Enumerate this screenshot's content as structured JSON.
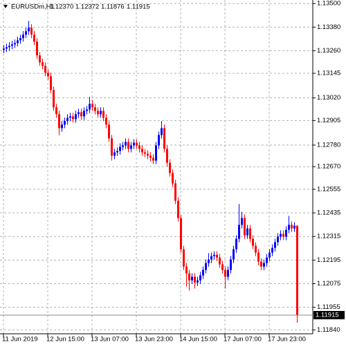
{
  "chart_data": {
    "type": "candlestick",
    "title": "EURUSDm,H1",
    "header_values": [
      "1.12370",
      "1.12372",
      "1.11876",
      "1.11915"
    ],
    "up_color": "#0000ff",
    "down_color": "#ff0000",
    "grid": true,
    "ylim": [
      1.1182,
      1.13518
    ],
    "yticks": [
      {
        "value": 1.135,
        "label": "1.13500"
      },
      {
        "value": 1.1338,
        "label": "1.13380"
      },
      {
        "value": 1.1326,
        "label": "1.13260"
      },
      {
        "value": 1.13145,
        "label": "1.13145"
      },
      {
        "value": 1.1302,
        "label": "1.13020"
      },
      {
        "value": 1.12905,
        "label": "1.12905"
      },
      {
        "value": 1.1278,
        "label": "1.12780"
      },
      {
        "value": 1.1267,
        "label": "1.12670"
      },
      {
        "value": 1.12555,
        "label": "1.12555"
      },
      {
        "value": 1.12435,
        "label": "1.12435"
      },
      {
        "value": 1.12315,
        "label": "1.12315"
      },
      {
        "value": 1.12195,
        "label": "1.12195"
      },
      {
        "value": 1.12075,
        "label": "1.12075"
      },
      {
        "value": 1.11955,
        "label": "1.11955"
      },
      {
        "value": 1.1184,
        "label": "1.11840"
      }
    ],
    "xticks": [
      {
        "value": 0,
        "label": "11 Jun 2019"
      },
      {
        "value": 16,
        "label": "12 Jun 15:00"
      },
      {
        "value": 32,
        "label": "13 Jun 07:00"
      },
      {
        "value": 48,
        "label": "13 Jun 23:00"
      },
      {
        "value": 64,
        "label": "14 Jun 15:00"
      },
      {
        "value": 80,
        "label": "17 Jun 07:00"
      },
      {
        "value": 96,
        "label": "17 Jun 23:00"
      }
    ],
    "price_line": {
      "value": 1.11915,
      "label": "1.11915"
    },
    "candles": [
      [
        1.13265,
        1.13289,
        1.13247,
        1.13271
      ],
      [
        1.13271,
        1.13296,
        1.13253,
        1.13278
      ],
      [
        1.13278,
        1.13303,
        1.1326,
        1.13285
      ],
      [
        1.13285,
        1.1331,
        1.13267,
        1.13292
      ],
      [
        1.13292,
        1.13317,
        1.13274,
        1.13299
      ],
      [
        1.13299,
        1.13331,
        1.13281,
        1.13313
      ],
      [
        1.13313,
        1.13342,
        1.13295,
        1.13324
      ],
      [
        1.13324,
        1.1336,
        1.13306,
        1.13342
      ],
      [
        1.13342,
        1.13377,
        1.13324,
        1.13359
      ],
      [
        1.13359,
        1.13412,
        1.13341,
        1.13377
      ],
      [
        1.13377,
        1.13395,
        1.13324,
        1.13342
      ],
      [
        1.13342,
        1.1336,
        1.13288,
        1.13306
      ],
      [
        1.13306,
        1.13324,
        1.13218,
        1.13236
      ],
      [
        1.13236,
        1.13254,
        1.13183,
        1.13201
      ],
      [
        1.13201,
        1.13219,
        1.13165,
        1.13183
      ],
      [
        1.13183,
        1.13201,
        1.1313,
        1.13148
      ],
      [
        1.13148,
        1.13166,
        1.13112,
        1.1313
      ],
      [
        1.1313,
        1.13148,
        1.13042,
        1.1306
      ],
      [
        1.1306,
        1.13078,
        1.12954,
        1.12972
      ],
      [
        1.12972,
        1.1299,
        1.12919,
        1.12937
      ],
      [
        1.12937,
        1.12955,
        1.1283,
        1.12866
      ],
      [
        1.12866,
        1.12902,
        1.12848,
        1.12884
      ],
      [
        1.12884,
        1.1292,
        1.12866,
        1.12902
      ],
      [
        1.12902,
        1.12937,
        1.12884,
        1.12919
      ],
      [
        1.12919,
        1.12944,
        1.12901,
        1.12926
      ],
      [
        1.12926,
        1.12944,
        1.12894,
        1.12912
      ],
      [
        1.12912,
        1.12955,
        1.12894,
        1.12937
      ],
      [
        1.12937,
        1.12965,
        1.12919,
        1.12947
      ],
      [
        1.12947,
        1.12965,
        1.12908,
        1.12926
      ],
      [
        1.12926,
        1.12972,
        1.12908,
        1.12954
      ],
      [
        1.12954,
        1.12979,
        1.12936,
        1.12961
      ],
      [
        1.12961,
        1.13025,
        1.12943,
        1.1299
      ],
      [
        1.1299,
        1.13008,
        1.12954,
        1.12972
      ],
      [
        1.12972,
        1.1299,
        1.12936,
        1.12954
      ],
      [
        1.12954,
        1.12972,
        1.12919,
        1.12937
      ],
      [
        1.12937,
        1.12972,
        1.12919,
        1.12954
      ],
      [
        1.12954,
        1.12972,
        1.12901,
        1.12919
      ],
      [
        1.12919,
        1.12937,
        1.12866,
        1.12884
      ],
      [
        1.12884,
        1.12902,
        1.12796,
        1.12814
      ],
      [
        1.12814,
        1.12832,
        1.12701,
        1.12726
      ],
      [
        1.12726,
        1.12761,
        1.12708,
        1.12743
      ],
      [
        1.12743,
        1.12768,
        1.12725,
        1.1275
      ],
      [
        1.1275,
        1.12789,
        1.12732,
        1.12771
      ],
      [
        1.12771,
        1.12796,
        1.12753,
        1.12778
      ],
      [
        1.12778,
        1.12814,
        1.1276,
        1.12796
      ],
      [
        1.12796,
        1.12814,
        1.12743,
        1.12761
      ],
      [
        1.12761,
        1.12796,
        1.12743,
        1.12778
      ],
      [
        1.12778,
        1.1281,
        1.1276,
        1.12792
      ],
      [
        1.12792,
        1.1281,
        1.1276,
        1.12778
      ],
      [
        1.12778,
        1.12796,
        1.12743,
        1.12761
      ],
      [
        1.12761,
        1.12779,
        1.12725,
        1.12743
      ],
      [
        1.12743,
        1.12761,
        1.12718,
        1.12736
      ],
      [
        1.12736,
        1.12754,
        1.12708,
        1.12726
      ],
      [
        1.12726,
        1.12744,
        1.12697,
        1.12715
      ],
      [
        1.12715,
        1.12733,
        1.12683,
        1.12701
      ],
      [
        1.12701,
        1.12796,
        1.12683,
        1.12778
      ],
      [
        1.12778,
        1.12849,
        1.1276,
        1.12831
      ],
      [
        1.12831,
        1.12902,
        1.12813,
        1.12866
      ],
      [
        1.12866,
        1.12884,
        1.12743,
        1.12761
      ],
      [
        1.12761,
        1.12779,
        1.12672,
        1.1269
      ],
      [
        1.1269,
        1.12708,
        1.1262,
        1.12638
      ],
      [
        1.12638,
        1.12656,
        1.12567,
        1.12585
      ],
      [
        1.12585,
        1.12603,
        1.12479,
        1.12497
      ],
      [
        1.12497,
        1.12515,
        1.12391,
        1.12409
      ],
      [
        1.12409,
        1.12427,
        1.12232,
        1.1225
      ],
      [
        1.1225,
        1.12268,
        1.12144,
        1.12162
      ],
      [
        1.12162,
        1.1218,
        1.1206,
        1.12127
      ],
      [
        1.12127,
        1.12145,
        1.1204,
        1.12092
      ],
      [
        1.12092,
        1.12128,
        1.12074,
        1.1211
      ],
      [
        1.1211,
        1.12128,
        1.1205,
        1.12081
      ],
      [
        1.12081,
        1.1211,
        1.12063,
        1.12092
      ],
      [
        1.12092,
        1.12135,
        1.12074,
        1.12117
      ],
      [
        1.12117,
        1.12163,
        1.12099,
        1.12145
      ],
      [
        1.12145,
        1.12198,
        1.12127,
        1.1218
      ],
      [
        1.1218,
        1.1223,
        1.12162,
        1.12198
      ],
      [
        1.12198,
        1.12233,
        1.1218,
        1.12215
      ],
      [
        1.12215,
        1.1224,
        1.12197,
        1.12222
      ],
      [
        1.12222,
        1.1224,
        1.1219,
        1.12208
      ],
      [
        1.12208,
        1.12226,
        1.12155,
        1.12173
      ],
      [
        1.12173,
        1.12191,
        1.12127,
        1.12145
      ],
      [
        1.12145,
        1.12163,
        1.1205,
        1.1211
      ],
      [
        1.1211,
        1.12163,
        1.12092,
        1.12145
      ],
      [
        1.12145,
        1.12216,
        1.12127,
        1.12198
      ],
      [
        1.12198,
        1.12268,
        1.1218,
        1.1225
      ],
      [
        1.1225,
        1.12321,
        1.12232,
        1.12303
      ],
      [
        1.12303,
        1.1248,
        1.12285,
        1.12374
      ],
      [
        1.12374,
        1.1244,
        1.12356,
        1.12409
      ],
      [
        1.12409,
        1.12427,
        1.12303,
        1.12321
      ],
      [
        1.12321,
        1.12374,
        1.12303,
        1.12356
      ],
      [
        1.12356,
        1.12374,
        1.12285,
        1.12303
      ],
      [
        1.12303,
        1.12321,
        1.1225,
        1.12268
      ],
      [
        1.12268,
        1.12286,
        1.12215,
        1.12233
      ],
      [
        1.12233,
        1.12251,
        1.12169,
        1.12187
      ],
      [
        1.12187,
        1.12205,
        1.12144,
        1.12162
      ],
      [
        1.12162,
        1.12198,
        1.12144,
        1.1218
      ],
      [
        1.1218,
        1.12226,
        1.12162,
        1.12208
      ],
      [
        1.12208,
        1.12251,
        1.1219,
        1.12233
      ],
      [
        1.12233,
        1.12275,
        1.12215,
        1.12257
      ],
      [
        1.12257,
        1.12304,
        1.12239,
        1.12286
      ],
      [
        1.12286,
        1.12332,
        1.12268,
        1.12314
      ],
      [
        1.12314,
        1.12346,
        1.12296,
        1.12328
      ],
      [
        1.12328,
        1.12346,
        1.12296,
        1.12314
      ],
      [
        1.12314,
        1.12367,
        1.12296,
        1.12349
      ],
      [
        1.12349,
        1.1242,
        1.12331,
        1.12374
      ],
      [
        1.12374,
        1.12392,
        1.12338,
        1.12356
      ],
      [
        1.12356,
        1.12388,
        1.12338,
        1.1237
      ],
      [
        1.1237,
        1.12372,
        1.11876,
        1.11915
      ]
    ]
  }
}
